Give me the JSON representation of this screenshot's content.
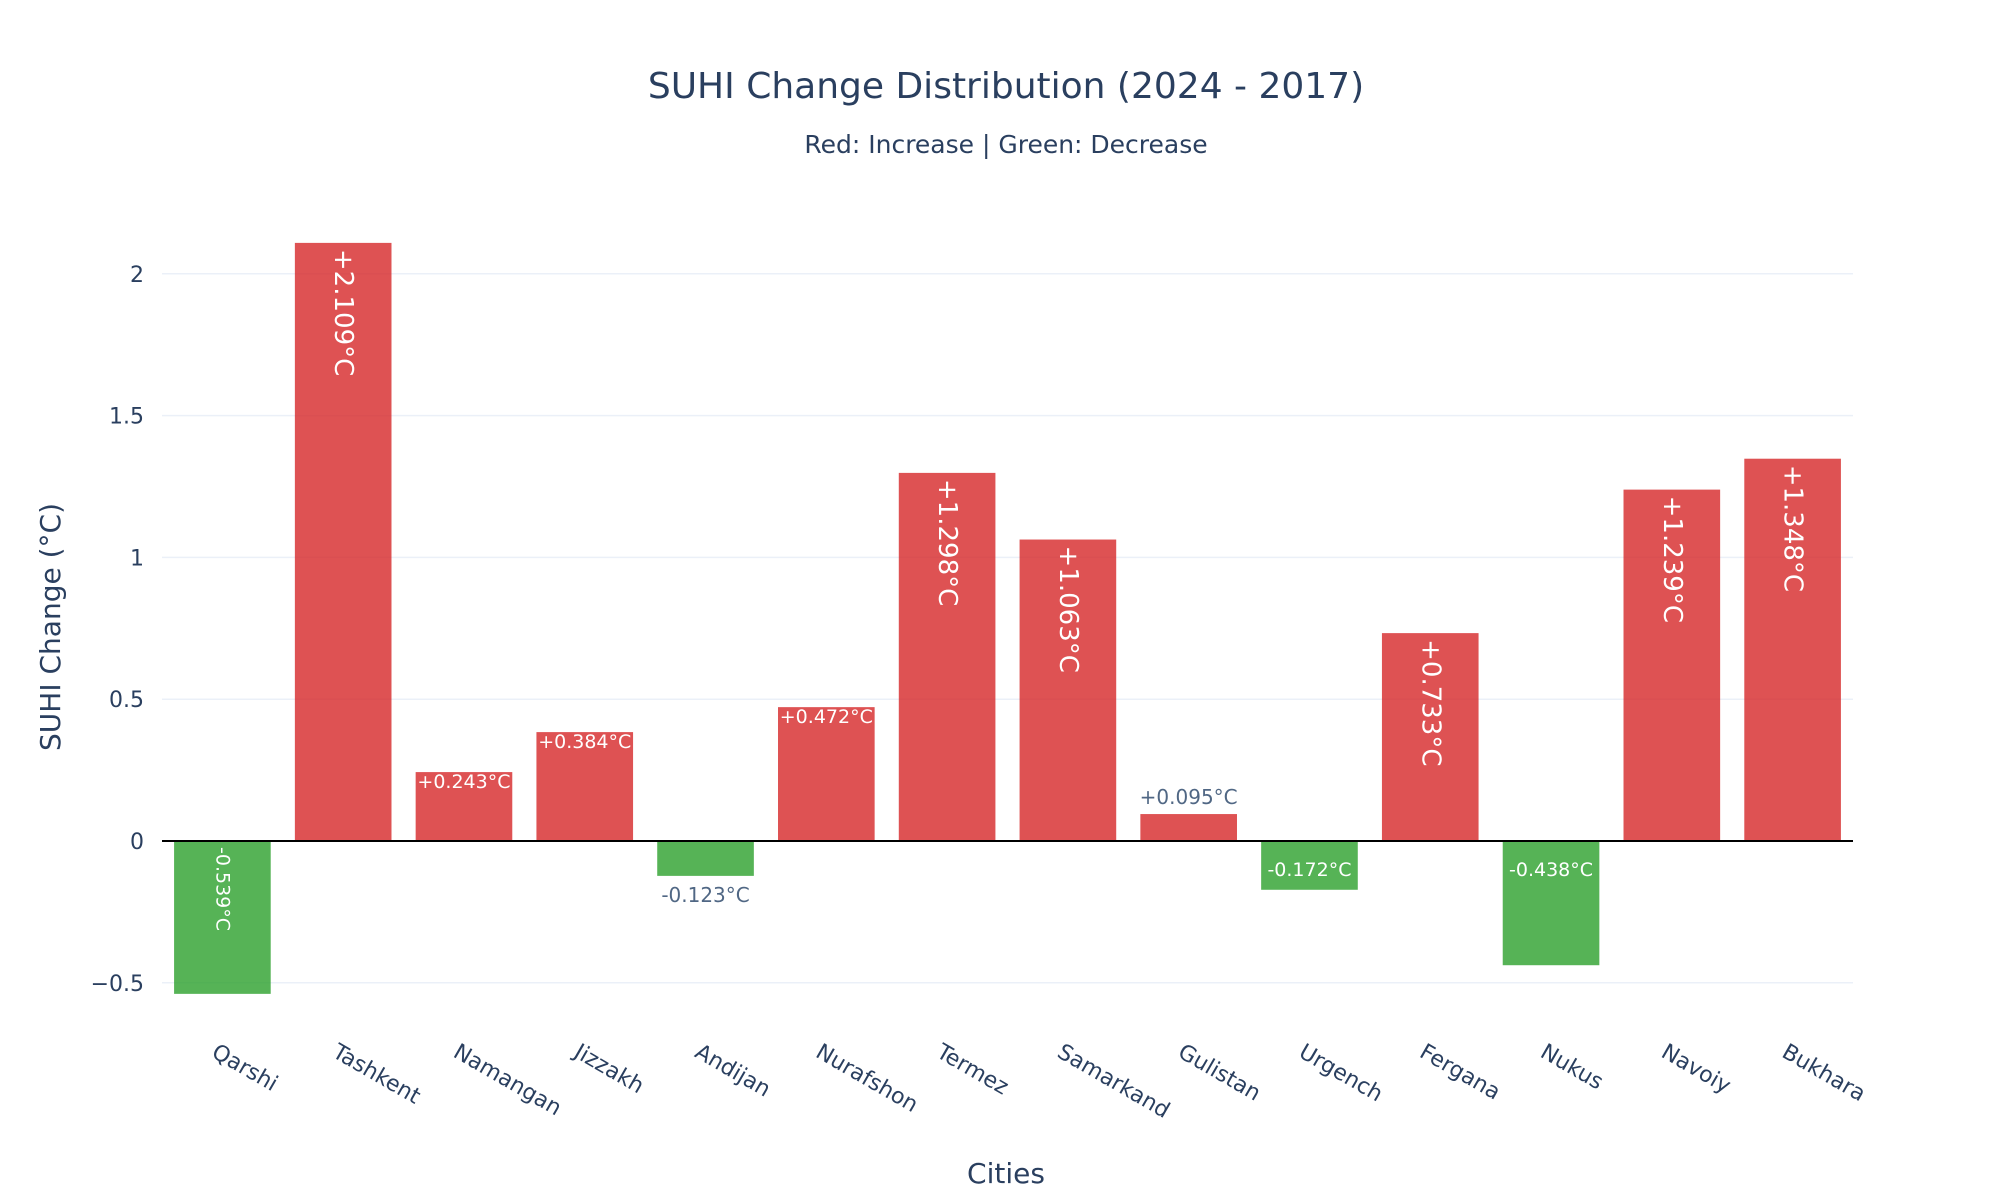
{
  "chart_data": {
    "type": "bar",
    "title": "SUHI Change Distribution (2024 - 2017)",
    "subtitle": "Red: Increase | Green: Decrease",
    "xlabel": "Cities",
    "ylabel": "SUHI Change (°C)",
    "ylim": [
      -0.56,
      2.2
    ],
    "yticks": [
      -0.5,
      0,
      0.5,
      1,
      1.5,
      2
    ],
    "ytick_labels": [
      "−0.5",
      "0",
      "0.5",
      "1",
      "1.5",
      "2"
    ],
    "grid": true,
    "categories": [
      "Qarshi",
      "Tashkent",
      "Namangan",
      "Jizzakh",
      "Andijan",
      "Nurafshon",
      "Termez",
      "Samarkand",
      "Gulistan",
      "Urgench",
      "Fergana",
      "Nukus",
      "Navoiy",
      "Bukhara"
    ],
    "values": [
      -0.539,
      2.109,
      0.243,
      0.384,
      -0.123,
      0.472,
      1.298,
      1.063,
      0.095,
      -0.172,
      0.733,
      -0.438,
      1.239,
      1.348
    ],
    "data_labels": [
      "-0.539°C",
      "+2.109°C",
      "+0.243°C",
      "+0.384°C",
      "-0.123°C",
      "+0.472°C",
      "+1.298°C",
      "+1.063°C",
      "+0.095°C",
      "-0.172°C",
      "+0.733°C",
      "-0.438°C",
      "+1.239°C",
      "+1.348°C"
    ],
    "colors": {
      "increase": "#d62728",
      "decrease": "#2ca02c",
      "grid": "#ebf0f8",
      "zeroline": "#000000",
      "text": "#2a3f5f"
    }
  }
}
